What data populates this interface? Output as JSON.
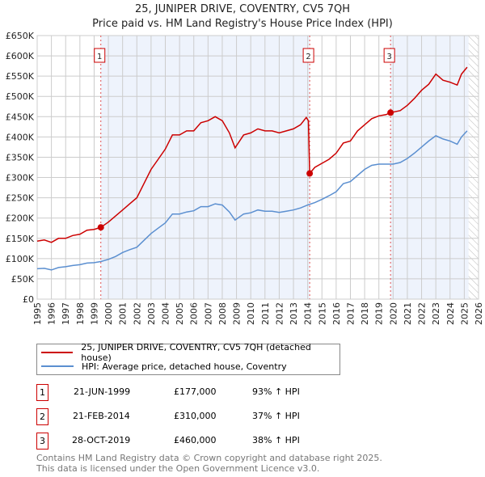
{
  "chart_data": {
    "type": "line",
    "title": "25, JUNIPER DRIVE, COVENTRY, CV5 7QH",
    "subtitle": "Price paid vs. HM Land Registry's House Price Index (HPI)",
    "xlim": [
      1995,
      2026
    ],
    "ylim": [
      0,
      650000
    ],
    "x_ticks": [
      "1995",
      "1996",
      "1997",
      "1998",
      "1999",
      "2000",
      "2001",
      "2002",
      "2003",
      "2004",
      "2005",
      "2006",
      "2007",
      "2008",
      "2009",
      "2010",
      "2011",
      "2012",
      "2013",
      "2014",
      "2015",
      "2016",
      "2017",
      "2018",
      "2019",
      "2020",
      "2021",
      "2022",
      "2023",
      "2024",
      "2025",
      "2026"
    ],
    "y_ticks": [
      {
        "v": 0,
        "l": "£0"
      },
      {
        "v": 50000,
        "l": "£50K"
      },
      {
        "v": 100000,
        "l": "£100K"
      },
      {
        "v": 150000,
        "l": "£150K"
      },
      {
        "v": 200000,
        "l": "£200K"
      },
      {
        "v": 250000,
        "l": "£250K"
      },
      {
        "v": 300000,
        "l": "£300K"
      },
      {
        "v": 350000,
        "l": "£350K"
      },
      {
        "v": 400000,
        "l": "£400K"
      },
      {
        "v": 450000,
        "l": "£450K"
      },
      {
        "v": 500000,
        "l": "£500K"
      },
      {
        "v": 550000,
        "l": "£550K"
      },
      {
        "v": 600000,
        "l": "£600K"
      },
      {
        "v": 650000,
        "l": "£650K"
      }
    ],
    "grid": true,
    "series": [
      {
        "name": "25, JUNIPER DRIVE, COVENTRY, CV5 7QH (detached house)",
        "color": "#cc0000",
        "x": [
          1995,
          1995.5,
          1996,
          1996.5,
          1997,
          1997.5,
          1998,
          1998.5,
          1999,
          1999.47,
          2000,
          2000.5,
          2001,
          2001.5,
          2002,
          2002.5,
          2003,
          2003.5,
          2004,
          2004.5,
          2005,
          2005.5,
          2006,
          2006.5,
          2007,
          2007.5,
          2008,
          2008.5,
          2008.9,
          2009.5,
          2010,
          2010.5,
          2011,
          2011.5,
          2012,
          2012.5,
          2013,
          2013.5,
          2013.9,
          2014.05,
          2014.14,
          2014.5,
          2015,
          2015.5,
          2016,
          2016.5,
          2017,
          2017.5,
          2018,
          2018.5,
          2019,
          2019.5,
          2019.82,
          2020.5,
          2021,
          2021.5,
          2022,
          2022.5,
          2023,
          2023.5,
          2024,
          2024.5,
          2024.8,
          2025.2
        ],
        "y": [
          143000,
          146000,
          140000,
          150000,
          150000,
          157000,
          160000,
          170000,
          172000,
          177000,
          190000,
          205000,
          220000,
          235000,
          250000,
          285000,
          320000,
          345000,
          370000,
          405000,
          405000,
          415000,
          415000,
          435000,
          440000,
          450000,
          440000,
          410000,
          373000,
          405000,
          410000,
          420000,
          415000,
          415000,
          410000,
          415000,
          420000,
          430000,
          448000,
          440000,
          310000,
          325000,
          335000,
          345000,
          360000,
          385000,
          390000,
          415000,
          430000,
          445000,
          452000,
          455000,
          460000,
          465000,
          478000,
          495000,
          515000,
          530000,
          555000,
          540000,
          535000,
          528000,
          555000,
          572000
        ]
      },
      {
        "name": "HPI: Average price, detached house, Coventry",
        "color": "#5b8fd0",
        "x": [
          1995,
          1995.5,
          1996,
          1996.5,
          1997,
          1997.5,
          1998,
          1998.5,
          1999,
          1999.5,
          2000,
          2000.5,
          2001,
          2001.5,
          2002,
          2002.5,
          2003,
          2003.5,
          2004,
          2004.5,
          2005,
          2005.5,
          2006,
          2006.5,
          2007,
          2007.5,
          2008,
          2008.5,
          2008.9,
          2009.5,
          2010,
          2010.5,
          2011,
          2011.5,
          2012,
          2012.5,
          2013,
          2013.5,
          2014,
          2014.5,
          2015,
          2015.5,
          2016,
          2016.5,
          2017,
          2017.5,
          2018,
          2018.5,
          2019,
          2019.5,
          2020,
          2020.5,
          2021,
          2021.5,
          2022,
          2022.5,
          2023,
          2023.5,
          2024,
          2024.5,
          2024.8,
          2025.2
        ],
        "y": [
          75000,
          76000,
          72000,
          78000,
          80000,
          83000,
          85000,
          89000,
          90000,
          93000,
          98000,
          105000,
          115000,
          122000,
          128000,
          145000,
          162000,
          175000,
          188000,
          210000,
          210000,
          215000,
          218000,
          228000,
          228000,
          235000,
          232000,
          215000,
          195000,
          210000,
          213000,
          220000,
          217000,
          217000,
          214000,
          217000,
          220000,
          225000,
          232000,
          238000,
          246000,
          255000,
          265000,
          285000,
          290000,
          305000,
          320000,
          330000,
          333000,
          333000,
          333000,
          337000,
          347000,
          360000,
          375000,
          390000,
          403000,
          395000,
          390000,
          382000,
          400000,
          415000
        ]
      }
    ],
    "sales": [
      {
        "id": "1",
        "x": 1999.47,
        "y": 177000
      },
      {
        "id": "2",
        "x": 2014.14,
        "y": 310000
      },
      {
        "id": "3",
        "x": 2019.82,
        "y": 460000
      }
    ],
    "shaded_ranges": [
      [
        1999.47,
        2014.14
      ],
      [
        2019.82,
        2025.3
      ]
    ],
    "forecast_from": 2025.3
  },
  "legend": {
    "items": [
      "25, JUNIPER DRIVE, COVENTRY, CV5 7QH (detached house)",
      "HPI: Average price, detached house, Coventry"
    ]
  },
  "transactions": [
    {
      "num": "1",
      "date": "21-JUN-1999",
      "price": "£177,000",
      "hpi": "93% ↑ HPI"
    },
    {
      "num": "2",
      "date": "21-FEB-2014",
      "price": "£310,000",
      "hpi": "37% ↑ HPI"
    },
    {
      "num": "3",
      "date": "28-OCT-2019",
      "price": "£460,000",
      "hpi": "38% ↑ HPI"
    }
  ],
  "footer": {
    "line1": "Contains HM Land Registry data © Crown copyright and database right 2025.",
    "line2": "This data is licensed under the Open Government Licence v3.0."
  }
}
